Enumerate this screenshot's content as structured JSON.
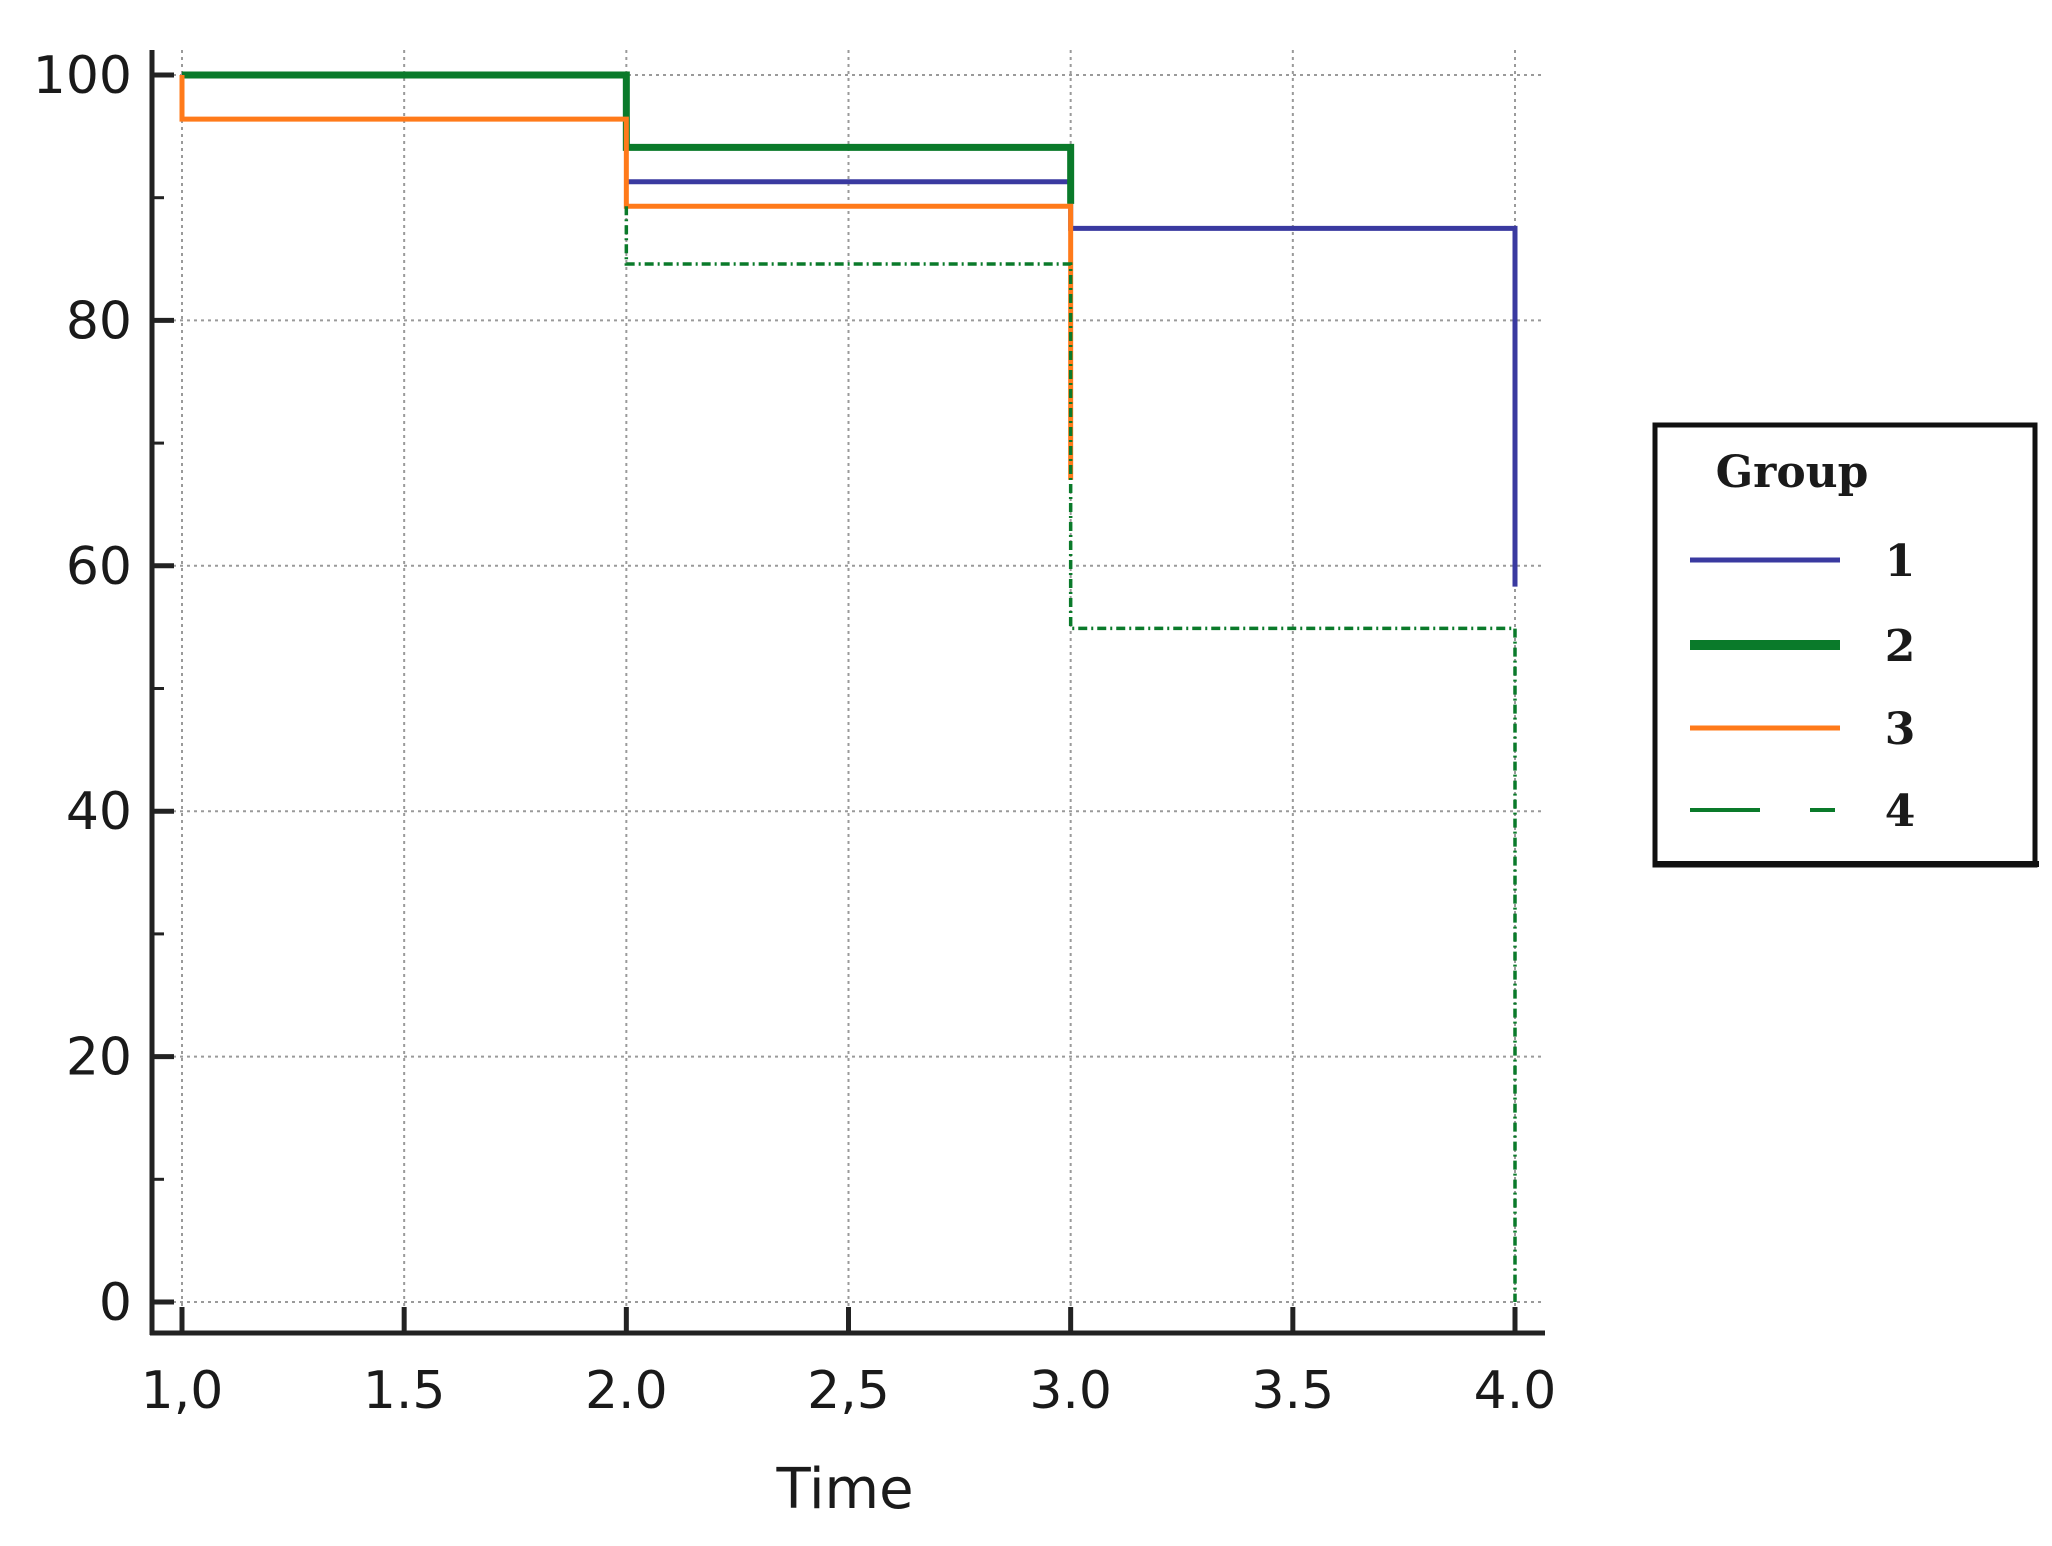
{
  "chart_data": {
    "type": "line",
    "title": "",
    "xlabel": "Time",
    "ylabel": "",
    "xlim": [
      1.0,
      4.0
    ],
    "ylim": [
      0,
      100
    ],
    "x_ticks": [
      1.0,
      1.5,
      2.0,
      2.5,
      3.0,
      3.5,
      4.0
    ],
    "x_tick_labels": [
      "1,0",
      "1.5",
      "2.0",
      "2,5",
      "3.0",
      "3.5",
      "4.0"
    ],
    "y_ticks": [
      0,
      20,
      40,
      60,
      80,
      100
    ],
    "y_tick_labels": [
      "0",
      "20",
      "40",
      "60",
      "80",
      "100"
    ],
    "grid": true,
    "step": true,
    "legend": {
      "title": "Group",
      "position": "right"
    },
    "series": [
      {
        "name": "1",
        "color": "#3a3aa0",
        "style": "solid",
        "x": [
          2.0,
          3.0,
          4.0
        ],
        "y": [
          91.3,
          87.5,
          58.3
        ]
      },
      {
        "name": "2",
        "color": "#0a7a2a",
        "style": "solid",
        "x": [
          1.0,
          2.0,
          3.0
        ],
        "y": [
          100,
          94.1,
          89.5
        ]
      },
      {
        "name": "3",
        "color": "#ff7a1a",
        "style": "solid",
        "x": [
          1.0,
          2.0,
          3.0
        ],
        "y": [
          96.4,
          89.3,
          67.0
        ]
      },
      {
        "name": "4",
        "color": "#0a7a2a",
        "style": "dashdot",
        "x": [
          2.0,
          3.0,
          4.0
        ],
        "y": [
          84.6,
          54.9,
          0
        ]
      }
    ]
  }
}
